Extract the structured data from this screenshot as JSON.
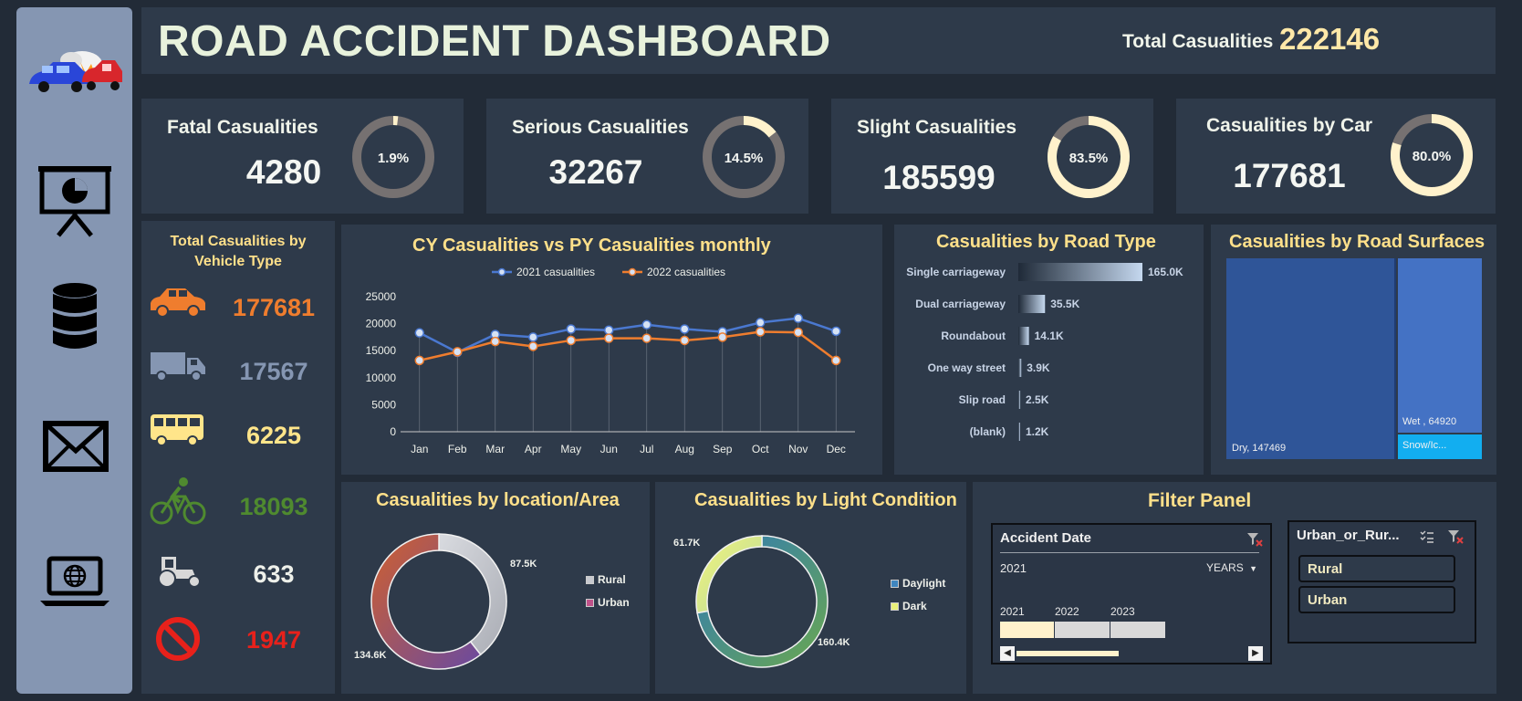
{
  "header": {
    "title": "ROAD ACCIDENT DASHBOARD",
    "total_label": "Total Casualities",
    "total_value": "222146"
  },
  "sidebar": {
    "icons": [
      "crash-cars-icon",
      "presentation-chart-icon",
      "database-icon",
      "mail-icon",
      "laptop-globe-icon"
    ]
  },
  "kpis": [
    {
      "label": "Fatal Casualities",
      "value": "4280",
      "pct_label": "1.9%",
      "fraction": 0.019
    },
    {
      "label": "Serious Casualities",
      "value": "32267",
      "pct_label": "14.5%",
      "fraction": 0.145
    },
    {
      "label": "Slight Casualities",
      "value": "185599",
      "pct_label": "83.5%",
      "fraction": 0.835
    },
    {
      "label": "Casualities by Car",
      "value": "177681",
      "pct_label": "80.0%",
      "fraction": 0.8
    }
  ],
  "vehicle": {
    "title_line1": "Total Casualities by",
    "title_line2": "Vehicle Type",
    "items": [
      {
        "icon": "car-icon",
        "value": "177681",
        "color": "#ef7d2e"
      },
      {
        "icon": "truck-icon",
        "value": "17567",
        "color": "#8596b2"
      },
      {
        "icon": "bus-icon",
        "value": "6225",
        "color": "#ffe58a"
      },
      {
        "icon": "bicycle-icon",
        "value": "18093",
        "color": "#4f8a2f"
      },
      {
        "icon": "tractor-icon",
        "value": "633",
        "color": "#eef0ea"
      },
      {
        "icon": "no-entry-icon",
        "value": "1947",
        "color": "#e8211b"
      }
    ]
  },
  "colors": {
    "accent_yellow": "#ffe08a",
    "line_2021": "#4a78d0",
    "line_2022": "#ef7d2e",
    "panel_bg": "#2e3a4a",
    "page_bg": "#222b37"
  },
  "chart_data": [
    {
      "type": "line",
      "title": "CY Casualities vs PY Casualities monthly",
      "categories": [
        "Jan",
        "Feb",
        "Mar",
        "Apr",
        "May",
        "Jun",
        "Jul",
        "Aug",
        "Sep",
        "Oct",
        "Nov",
        "Dec"
      ],
      "series": [
        {
          "name": "2021 casualities",
          "values": [
            18300,
            14700,
            18000,
            17500,
            19000,
            18800,
            19800,
            19000,
            18500,
            20200,
            21000,
            18600
          ]
        },
        {
          "name": "2022 casualities",
          "values": [
            13200,
            14800,
            16700,
            15800,
            16900,
            17300,
            17300,
            16900,
            17500,
            18500,
            18400,
            13200
          ]
        }
      ],
      "yticks": [
        0,
        5000,
        10000,
        15000,
        20000,
        25000
      ],
      "ylim": [
        0,
        25000
      ],
      "legend": "top"
    },
    {
      "type": "bar",
      "title": "Casualities by Road Type",
      "categories": [
        "Single carriageway",
        "Dual carriageway",
        "Roundabout",
        "One way street",
        "Slip road",
        "(blank)"
      ],
      "values": [
        165.0,
        35.5,
        14.1,
        3.9,
        2.5,
        1.2
      ],
      "labels": [
        "165.0K",
        "35.5K",
        "14.1K",
        "3.9K",
        "2.5K",
        "1.2K"
      ],
      "orientation": "horizontal"
    },
    {
      "type": "treemap",
      "title": "Casualities by Road Surfaces",
      "items": [
        {
          "label": "Dry, 147469",
          "value": 147469
        },
        {
          "label": "Wet , 64920",
          "value": 64920
        },
        {
          "label": "Snow/Ic...",
          "value": 9757
        }
      ]
    },
    {
      "type": "pie",
      "title": "Casualities by location/Area",
      "categories": [
        "Rural",
        "Urban"
      ],
      "values": [
        87.5,
        134.6
      ],
      "labels": [
        "87.5K",
        "134.6K"
      ],
      "legend": "right"
    },
    {
      "type": "pie",
      "title": "Casualities by Light Condition",
      "categories": [
        "Daylight",
        "Dark"
      ],
      "values": [
        160.4,
        61.7
      ],
      "labels": [
        "160.4K",
        "61.7K"
      ],
      "legend": "right"
    }
  ],
  "filter_panel": {
    "title": "Filter Panel",
    "date_slicer": {
      "title": "Accident Date",
      "range_text": "2021",
      "unit_label": "YEARS",
      "years": [
        "2021",
        "2022",
        "2023"
      ]
    },
    "area_slicer": {
      "title": "Urban_or_Rur...",
      "options": [
        "Rural",
        "Urban"
      ]
    }
  }
}
